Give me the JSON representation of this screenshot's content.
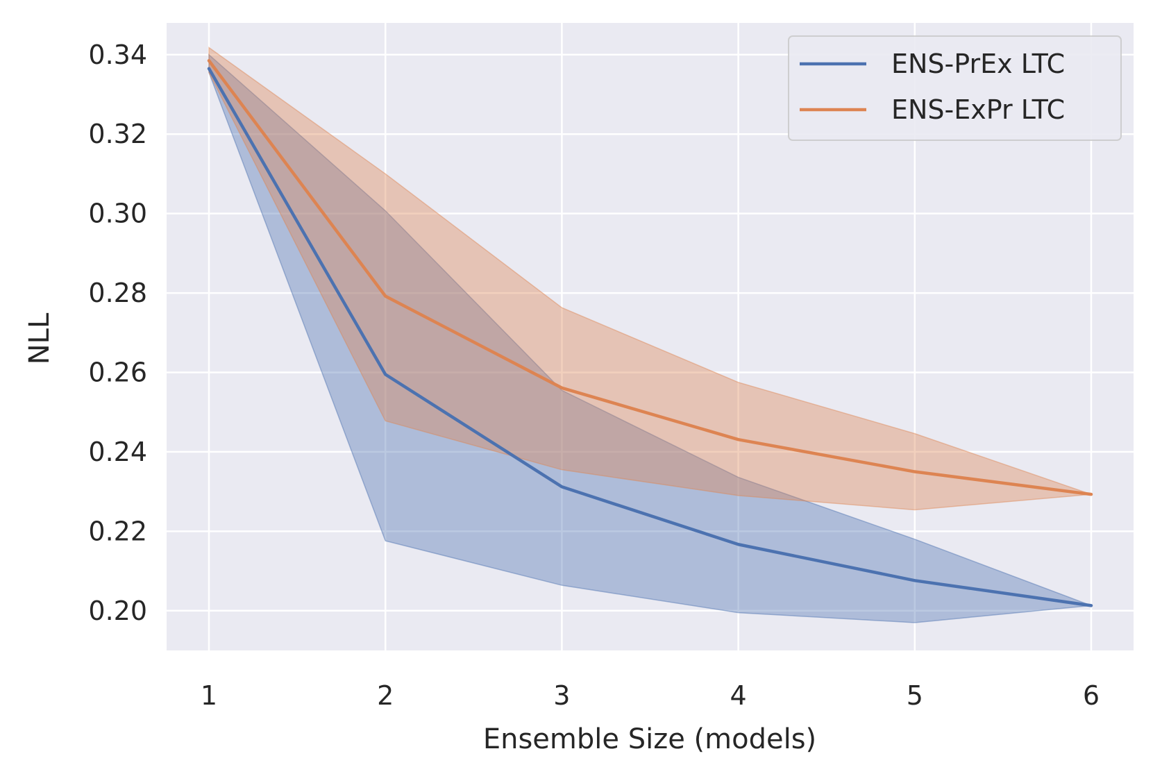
{
  "chart_data": {
    "type": "line",
    "title": "",
    "xlabel": "Ensemble Size (models)",
    "ylabel": "NLL",
    "x": [
      1,
      2,
      3,
      4,
      5,
      6
    ],
    "xlim": [
      0.76,
      6.24
    ],
    "ylim": [
      0.19,
      0.348
    ],
    "xticks": [
      1,
      2,
      3,
      4,
      5,
      6
    ],
    "xtick_labels": [
      "1",
      "2",
      "3",
      "4",
      "5",
      "6"
    ],
    "yticks": [
      0.2,
      0.22,
      0.24,
      0.26,
      0.28,
      0.3,
      0.32,
      0.34
    ],
    "ytick_labels": [
      "0.20",
      "0.22",
      "0.24",
      "0.26",
      "0.28",
      "0.30",
      "0.32",
      "0.34"
    ],
    "grid": true,
    "legend": "top-right",
    "series": [
      {
        "name": "ENS-PrEx LTC",
        "color": "#4c72b0",
        "values": [
          0.3365,
          0.2595,
          0.2312,
          0.2167,
          0.2076,
          0.2013
        ],
        "band_lower": [
          0.3355,
          0.2176,
          0.2064,
          0.1995,
          0.197,
          0.2013
        ],
        "band_upper": [
          0.34,
          0.3007,
          0.2555,
          0.2336,
          0.218,
          0.2013
        ]
      },
      {
        "name": "ENS-ExPr LTC",
        "color": "#dd8452",
        "values": [
          0.3385,
          0.2792,
          0.2561,
          0.2431,
          0.235,
          0.2293
        ],
        "band_lower": [
          0.3355,
          0.2478,
          0.2355,
          0.229,
          0.2254,
          0.2293
        ],
        "band_upper": [
          0.3418,
          0.31,
          0.2763,
          0.2575,
          0.2446,
          0.2293
        ]
      }
    ]
  }
}
